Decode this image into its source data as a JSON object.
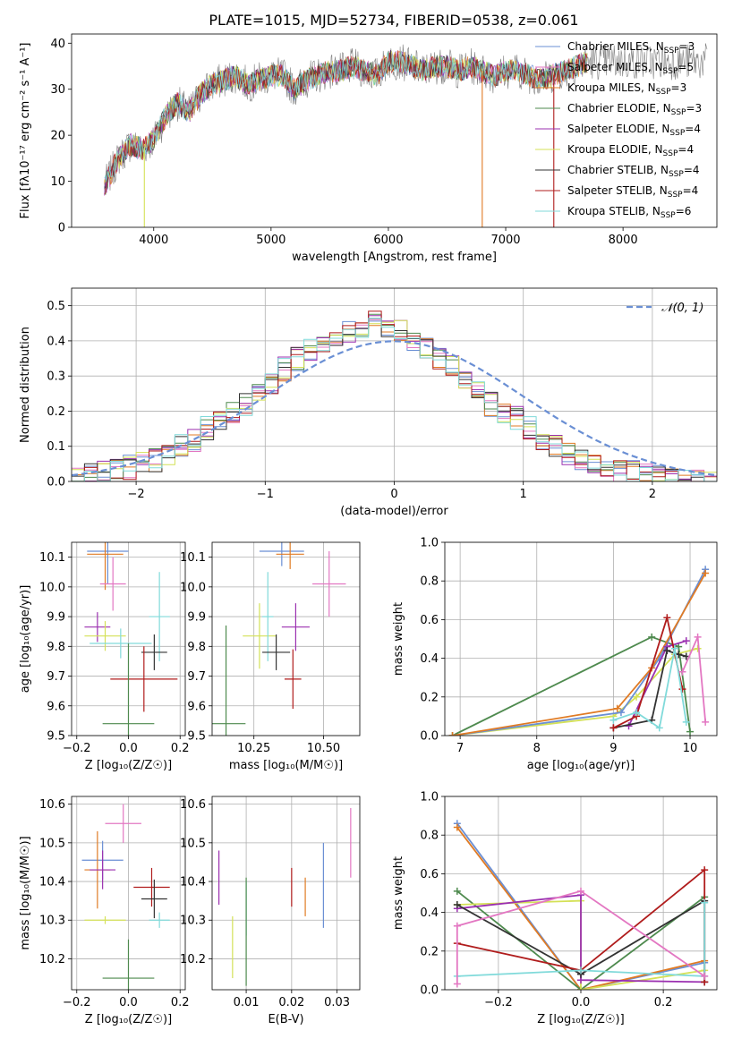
{
  "figure": {
    "title": "PLATE=1015, MJD=52734, FIBERID=0538, z=0.061"
  },
  "chart_data": [
    {
      "id": "spectrum",
      "type": "line",
      "xlabel": "wavelength [Angstrom, rest frame]",
      "ylabel": "Flux [fλ10⁻¹⁷ erg cm⁻² s⁻¹ A⁻¹]",
      "xlim": [
        3300,
        8800
      ],
      "ylim": [
        0,
        42
      ],
      "xticks": [
        4000,
        5000,
        6000,
        7000,
        8000
      ],
      "yticks": [
        0,
        10,
        20,
        30,
        40
      ],
      "grid": false,
      "legend_position": "top-right",
      "spectrum_shape": {
        "x": [
          3580,
          3700,
          3800,
          3900,
          4000,
          4100,
          4200,
          4300,
          4400,
          4500,
          4600,
          4700,
          4800,
          4900,
          5000,
          5100,
          5200,
          5300,
          5400,
          5500,
          5600,
          5700,
          5800,
          5900,
          6000,
          6100,
          6200,
          6300,
          6400,
          6500,
          6600,
          6700,
          6800,
          6900,
          7000,
          7100,
          7200,
          7300,
          7400,
          7500,
          7600,
          7700
        ],
        "y": [
          9,
          15,
          18,
          17,
          19,
          24,
          27,
          25,
          29,
          31,
          32,
          33,
          31,
          32,
          33,
          33,
          30,
          32,
          33,
          34,
          34,
          35,
          34,
          33,
          36,
          36,
          35,
          34,
          35,
          35,
          34,
          35,
          34,
          33,
          34,
          34,
          33,
          32,
          33,
          34,
          35,
          36
        ]
      },
      "series": [
        {
          "label": "Chabrier MILES, N",
          "sub": "SSP",
          "suffix": "=3",
          "color": "#6a8fd4"
        },
        {
          "label": "Salpeter MILES, N",
          "sub": "SSP",
          "suffix": "=5",
          "color": "#e377c2"
        },
        {
          "label": "Kroupa MILES, N",
          "sub": "SSP",
          "suffix": "=3",
          "color": "#e07b24"
        },
        {
          "label": "Chabrier ELODIE, N",
          "sub": "SSP",
          "suffix": "=3",
          "color": "#4e8a4e"
        },
        {
          "label": "Salpeter ELODIE, N",
          "sub": "SSP",
          "suffix": "=4",
          "color": "#9b30b0"
        },
        {
          "label": "Kroupa ELODIE, N",
          "sub": "SSP",
          "suffix": "=4",
          "color": "#d4e157"
        },
        {
          "label": "Chabrier STELIB, N",
          "sub": "SSP",
          "suffix": "=4",
          "color": "#333333"
        },
        {
          "label": "Salpeter STELIB, N",
          "sub": "SSP",
          "suffix": "=4",
          "color": "#b01c1c"
        },
        {
          "label": "Kroupa STELIB, N",
          "sub": "SSP",
          "suffix": "=6",
          "color": "#80dada"
        }
      ]
    },
    {
      "id": "residuals",
      "type": "histogram",
      "xlabel": "(data-model)/error",
      "ylabel": "Normed distribution",
      "xlim": [
        -2.5,
        2.5
      ],
      "ylim": [
        0,
        0.55
      ],
      "xticks": [
        -2,
        -1,
        0,
        1,
        2
      ],
      "yticks": [
        0.0,
        0.1,
        0.2,
        0.3,
        0.4,
        0.5
      ],
      "grid": true,
      "legend_position": "top-right",
      "reference_curve": {
        "label": "𝒩(0, 1)",
        "color": "#6a8fd4",
        "style": "dashed"
      },
      "bin_width": 0.1,
      "base_values": [
        0.01,
        0.02,
        0.025,
        0.03,
        0.04,
        0.05,
        0.06,
        0.08,
        0.1,
        0.12,
        0.15,
        0.17,
        0.2,
        0.22,
        0.26,
        0.28,
        0.32,
        0.35,
        0.37,
        0.38,
        0.4,
        0.42,
        0.44,
        0.45,
        0.44,
        0.43,
        0.4,
        0.38,
        0.35,
        0.33,
        0.29,
        0.26,
        0.22,
        0.2,
        0.18,
        0.15,
        0.12,
        0.1,
        0.08,
        0.06,
        0.05,
        0.04,
        0.03,
        0.025,
        0.02,
        0.015,
        0.01,
        0.01,
        0.005,
        0.005
      ]
    },
    {
      "id": "age_vs_Z",
      "type": "errorbar",
      "xlabel": "Z [log₁₀(Z/Z☉)]",
      "ylabel": "age  [log₁₀(age/yr)]",
      "xlim": [
        -0.22,
        0.22
      ],
      "ylim": [
        9.5,
        10.15
      ],
      "xticks": [
        -0.2,
        0.0,
        0.2
      ],
      "xticklabels": [
        "−0.2",
        "0.0",
        "0.2"
      ],
      "yticks": [
        9.5,
        9.6,
        9.7,
        9.8,
        9.9,
        10.0,
        10.1
      ],
      "grid": true,
      "points": [
        {
          "x": -0.08,
          "xerr": 0.08,
          "y": 10.12,
          "yerr": 0.11,
          "color": "#6a8fd4"
        },
        {
          "x": -0.09,
          "xerr": 0.07,
          "y": 10.11,
          "yerr": 0.12,
          "color": "#e07b24"
        },
        {
          "x": -0.06,
          "xerr": 0.05,
          "y": 10.01,
          "yerr": 0.09,
          "color": "#e377c2"
        },
        {
          "x": -0.12,
          "xerr": 0.05,
          "y": 9.865,
          "yerr": 0.05,
          "color": "#9b30b0"
        },
        {
          "x": -0.09,
          "xerr": 0.08,
          "y": 9.835,
          "yerr": 0.05,
          "color": "#d4e157"
        },
        {
          "x": -0.03,
          "xerr": 0.12,
          "y": 9.81,
          "yerr": 0.05,
          "color": "#80dada"
        },
        {
          "x": 0.12,
          "xerr": 0.04,
          "y": 9.9,
          "yerr": 0.15,
          "color": "#80dada"
        },
        {
          "x": 0.1,
          "xerr": 0.05,
          "y": 9.78,
          "yerr": 0.06,
          "color": "#333333"
        },
        {
          "x": 0.06,
          "xerr": 0.13,
          "y": 9.69,
          "yerr": 0.11,
          "color": "#b01c1c"
        },
        {
          "x": 0.0,
          "xerr": 0.1,
          "y": 9.54,
          "yerr": 0.27,
          "color": "#4e8a4e"
        }
      ]
    },
    {
      "id": "age_vs_mass",
      "type": "errorbar",
      "xlabel": "mass [log₁₀(M/M☉)]",
      "ylabel": "",
      "xlim": [
        10.1,
        10.63
      ],
      "ylim": [
        9.5,
        10.15
      ],
      "xticks": [
        10.25,
        10.5
      ],
      "xticklabels": [
        "10.25",
        "10.50"
      ],
      "yticks": [
        9.5,
        9.6,
        9.7,
        9.8,
        9.9,
        10.0,
        10.1
      ],
      "grid": true,
      "points": [
        {
          "x": 10.35,
          "xerr": 0.08,
          "y": 10.12,
          "yerr": 0.05,
          "color": "#6a8fd4"
        },
        {
          "x": 10.38,
          "xerr": 0.05,
          "y": 10.11,
          "yerr": 0.05,
          "color": "#e07b24"
        },
        {
          "x": 10.52,
          "xerr": 0.06,
          "y": 10.01,
          "yerr": 0.11,
          "color": "#e377c2"
        },
        {
          "x": 10.4,
          "xerr": 0.05,
          "y": 9.865,
          "yerr": 0.08,
          "color": "#9b30b0"
        },
        {
          "x": 10.27,
          "xerr": 0.06,
          "y": 9.835,
          "yerr": 0.11,
          "color": "#d4e157"
        },
        {
          "x": 10.3,
          "xerr": 0.02,
          "y": 9.9,
          "yerr": 0.15,
          "color": "#80dada"
        },
        {
          "x": 10.33,
          "xerr": 0.05,
          "y": 9.78,
          "yerr": 0.06,
          "color": "#333333"
        },
        {
          "x": 10.39,
          "xerr": 0.03,
          "y": 9.69,
          "yerr": 0.1,
          "color": "#b01c1c"
        },
        {
          "x": 10.15,
          "xerr": 0.07,
          "y": 9.54,
          "yerr": 0.33,
          "color": "#4e8a4e"
        }
      ]
    },
    {
      "id": "weight_vs_age",
      "type": "line",
      "xlabel": "age  [log₁₀(age/yr)]",
      "ylabel": "mass weight",
      "xlim": [
        6.8,
        10.35
      ],
      "ylim": [
        0,
        1
      ],
      "xticks": [
        7,
        8,
        9,
        10
      ],
      "yticks": [
        0.0,
        0.2,
        0.4,
        0.6,
        0.8,
        1.0
      ],
      "grid": true,
      "series": [
        {
          "color": "#4e8a4e",
          "x": [
            6.9,
            9.5,
            9.85,
            10.0
          ],
          "y": [
            0.0,
            0.51,
            0.46,
            0.02
          ]
        },
        {
          "color": "#d4e157",
          "x": [
            6.9,
            9.0,
            9.3,
            9.8,
            10.1
          ],
          "y": [
            0.0,
            0.1,
            0.2,
            0.42,
            0.45
          ]
        },
        {
          "color": "#6a8fd4",
          "x": [
            6.9,
            9.1,
            9.6,
            10.2
          ],
          "y": [
            0.0,
            0.12,
            0.4,
            0.86
          ]
        },
        {
          "color": "#e07b24",
          "x": [
            6.9,
            9.05,
            9.5,
            10.2
          ],
          "y": [
            0.0,
            0.14,
            0.35,
            0.84
          ]
        },
        {
          "color": "#9b30b0",
          "x": [
            9.2,
            9.7,
            9.95
          ],
          "y": [
            0.05,
            0.46,
            0.49
          ]
        },
        {
          "color": "#333333",
          "x": [
            9.0,
            9.5,
            9.7,
            9.85,
            9.95
          ],
          "y": [
            0.04,
            0.08,
            0.44,
            0.42,
            0.41
          ]
        },
        {
          "color": "#b01c1c",
          "x": [
            9.0,
            9.3,
            9.7,
            9.9
          ],
          "y": [
            0.04,
            0.1,
            0.61,
            0.24
          ]
        },
        {
          "color": "#80dada",
          "x": [
            9.0,
            9.3,
            9.6,
            9.8,
            9.95
          ],
          "y": [
            0.08,
            0.12,
            0.04,
            0.45,
            0.07
          ]
        },
        {
          "color": "#e377c2",
          "x": [
            9.9,
            10.1,
            10.2
          ],
          "y": [
            0.33,
            0.51,
            0.07
          ]
        }
      ]
    },
    {
      "id": "mass_vs_Z",
      "type": "errorbar",
      "xlabel": "Z [log₁₀(Z/Z☉)]",
      "ylabel": "mass [log₁₀(M/M☉)]",
      "xlim": [
        -0.22,
        0.22
      ],
      "ylim": [
        10.12,
        10.62
      ],
      "xticks": [
        -0.2,
        0.0,
        0.2
      ],
      "xticklabels": [
        "−0.2",
        "0.0",
        "0.2"
      ],
      "yticks": [
        10.2,
        10.3,
        10.4,
        10.5,
        10.6
      ],
      "grid": true,
      "points": [
        {
          "x": -0.02,
          "xerr": 0.07,
          "y": 10.55,
          "yerr": 0.05,
          "color": "#e377c2"
        },
        {
          "x": -0.1,
          "xerr": 0.08,
          "y": 10.455,
          "yerr": 0.05,
          "color": "#6a8fd4"
        },
        {
          "x": -0.12,
          "xerr": 0.05,
          "y": 10.43,
          "yerr": 0.1,
          "color": "#e07b24"
        },
        {
          "x": -0.1,
          "xerr": 0.05,
          "y": 10.43,
          "yerr": 0.05,
          "color": "#9b30b0"
        },
        {
          "x": 0.09,
          "xerr": 0.07,
          "y": 10.385,
          "yerr": 0.05,
          "color": "#b01c1c"
        },
        {
          "x": 0.1,
          "xerr": 0.05,
          "y": 10.355,
          "yerr": 0.05,
          "color": "#333333"
        },
        {
          "x": -0.09,
          "xerr": 0.08,
          "y": 10.3,
          "yerr": 0.01,
          "color": "#d4e157"
        },
        {
          "x": 0.12,
          "xerr": 0.04,
          "y": 10.3,
          "yerr": 0.02,
          "color": "#80dada"
        },
        {
          "x": 0.0,
          "xerr": 0.1,
          "y": 10.15,
          "yerr": 0.1,
          "color": "#4e8a4e"
        }
      ]
    },
    {
      "id": "mass_vs_EBV",
      "type": "errorbar",
      "xlabel": "E(B-V)",
      "ylabel": "",
      "xlim": [
        0.0025,
        0.035
      ],
      "ylim": [
        10.12,
        10.62
      ],
      "xticks": [
        0.01,
        0.02,
        0.03
      ],
      "xticklabels": [
        "0.01",
        "0.02",
        "0.03"
      ],
      "yticks": [
        10.2,
        10.3,
        10.4,
        10.5,
        10.6
      ],
      "grid": true,
      "points": [
        {
          "x": 0.004,
          "y": 10.41,
          "yerr": 0.07,
          "color": "#9b30b0"
        },
        {
          "x": 0.007,
          "y": 10.23,
          "yerr": 0.08,
          "color": "#d4e157"
        },
        {
          "x": 0.01,
          "y": 10.33,
          "yerr": 0.07,
          "color": "#80dada"
        },
        {
          "x": 0.01,
          "y": 10.27,
          "yerr": 0.14,
          "color": "#4e8a4e"
        },
        {
          "x": 0.02,
          "y": 10.385,
          "yerr": 0.05,
          "color": "#b01c1c"
        },
        {
          "x": 0.023,
          "y": 10.36,
          "yerr": 0.05,
          "color": "#e07b24"
        },
        {
          "x": 0.027,
          "y": 10.39,
          "yerr": 0.11,
          "color": "#6a8fd4"
        },
        {
          "x": 0.033,
          "y": 10.5,
          "yerr": 0.09,
          "color": "#e377c2"
        }
      ]
    },
    {
      "id": "weight_vs_Z",
      "type": "line",
      "xlabel": "Z [log₁₀(Z/Z☉)]",
      "ylabel": "mass weight",
      "xlim": [
        -0.33,
        0.33
      ],
      "ylim": [
        0,
        1
      ],
      "xticks": [
        -0.2,
        0.0,
        0.2
      ],
      "xticklabels": [
        "−0.2",
        "0.0",
        "0.2"
      ],
      "yticks": [
        0.0,
        0.2,
        0.4,
        0.6,
        0.8,
        1.0
      ],
      "grid": true,
      "series": [
        {
          "color": "#6a8fd4",
          "x": [
            -0.3,
            0.0,
            0.3
          ],
          "y": [
            0.86,
            0.0,
            0.14
          ]
        },
        {
          "color": "#e07b24",
          "x": [
            -0.3,
            0.0,
            0.3
          ],
          "y": [
            0.84,
            0.0,
            0.15
          ]
        },
        {
          "color": "#4e8a4e",
          "x": [
            -0.3,
            0.0,
            0.3
          ],
          "y": [
            0.51,
            0.0,
            0.48
          ]
        },
        {
          "color": "#d4e157",
          "x": [
            -0.3,
            0.0,
            0.0,
            0.3
          ],
          "y": [
            0.44,
            0.46,
            0.0,
            0.1
          ]
        },
        {
          "color": "#9b30b0",
          "x": [
            -0.3,
            0.0,
            0.0,
            0.3
          ],
          "y": [
            0.42,
            0.49,
            0.05,
            0.04
          ]
        },
        {
          "color": "#333333",
          "x": [
            -0.3,
            0.0,
            0.3,
            0.3
          ],
          "y": [
            0.44,
            0.08,
            0.46,
            0.04
          ]
        },
        {
          "color": "#b01c1c",
          "x": [
            -0.3,
            0.0,
            0.3,
            0.3
          ],
          "y": [
            0.24,
            0.1,
            0.62,
            0.04
          ]
        },
        {
          "color": "#80dada",
          "x": [
            -0.3,
            0.0,
            0.3,
            0.3
          ],
          "y": [
            0.07,
            0.1,
            0.07,
            0.45
          ]
        },
        {
          "color": "#e377c2",
          "x": [
            -0.3,
            -0.3,
            0.0,
            0.3
          ],
          "y": [
            0.03,
            0.33,
            0.51,
            0.07
          ]
        }
      ]
    }
  ]
}
